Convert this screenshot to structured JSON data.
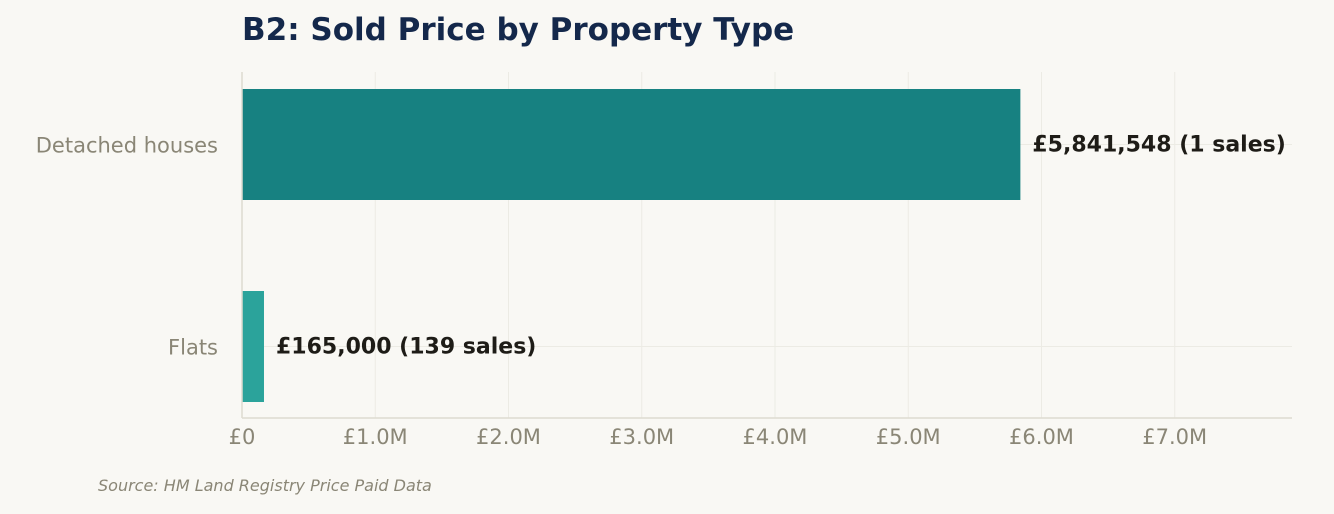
{
  "chart_data": {
    "type": "bar",
    "orientation": "horizontal",
    "title": "B2: Sold Price by Property Type",
    "xlabel": "",
    "ylabel": "",
    "categories": [
      "Detached houses",
      "Flats"
    ],
    "values": [
      5841548,
      165000
    ],
    "sales_counts": [
      1,
      139
    ],
    "data_labels": [
      "£5,841,548  (1 sales)",
      "£165,000  (139 sales)"
    ],
    "bar_colors": [
      "#178181",
      "#2ba39b"
    ],
    "xlim": [
      0,
      7880000
    ],
    "x_ticks": [
      0,
      1000000,
      2000000,
      3000000,
      4000000,
      5000000,
      6000000,
      7000000
    ],
    "x_tick_labels": [
      "£0",
      "£1.0M",
      "£2.0M",
      "£3.0M",
      "£4.0M",
      "£5.0M",
      "£6.0M",
      "£7.0M"
    ],
    "grid": true,
    "legend": "none"
  },
  "source": "Source: HM Land Registry Price Paid Data",
  "colors": {
    "background": "#f9f8f4",
    "title": "#14284b",
    "axis_text": "#8a8676",
    "label_text": "#1e1c17",
    "grid": "#ecebe4",
    "axis_line": "#dedbd0"
  }
}
